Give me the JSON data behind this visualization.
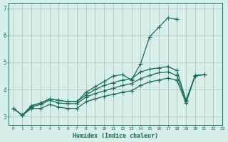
{
  "xlabel": "Humidex (Indice chaleur)",
  "background_color": "#d8eee8",
  "grid_color": "#b0cfc8",
  "line_color": "#1a6b5a",
  "x_values": [
    0,
    1,
    2,
    3,
    4,
    5,
    6,
    7,
    8,
    9,
    10,
    11,
    12,
    13,
    14,
    15,
    16,
    17,
    18,
    19,
    20,
    21,
    22,
    23
  ],
  "series1": [
    3.3,
    3.05,
    3.4,
    3.5,
    3.65,
    3.6,
    3.55,
    3.55,
    3.9,
    4.1,
    4.3,
    4.5,
    4.55,
    4.35,
    4.95,
    5.95,
    6.3,
    6.65,
    6.6,
    null,
    null,
    null,
    null,
    null
  ],
  "series2": [
    3.3,
    3.05,
    3.4,
    3.5,
    3.65,
    3.6,
    3.55,
    3.55,
    3.8,
    4.0,
    4.15,
    4.25,
    4.35,
    4.4,
    4.65,
    4.75,
    4.8,
    4.85,
    4.7,
    3.6,
    4.5,
    4.55,
    null,
    null
  ],
  "series3": [
    null,
    3.05,
    3.35,
    3.45,
    3.6,
    3.5,
    3.48,
    3.48,
    3.72,
    3.85,
    3.95,
    4.05,
    4.15,
    4.22,
    4.4,
    4.52,
    4.62,
    4.65,
    4.52,
    3.55,
    4.52,
    4.55,
    null,
    null
  ],
  "series4": [
    3.3,
    3.05,
    3.3,
    3.3,
    3.45,
    3.35,
    3.3,
    3.3,
    3.55,
    3.65,
    3.75,
    3.82,
    3.9,
    3.95,
    4.15,
    4.28,
    4.35,
    4.42,
    4.35,
    3.5,
    4.5,
    4.55,
    null,
    null
  ],
  "ylim": [
    2.7,
    7.2
  ],
  "xlim": [
    -0.5,
    23.0
  ]
}
